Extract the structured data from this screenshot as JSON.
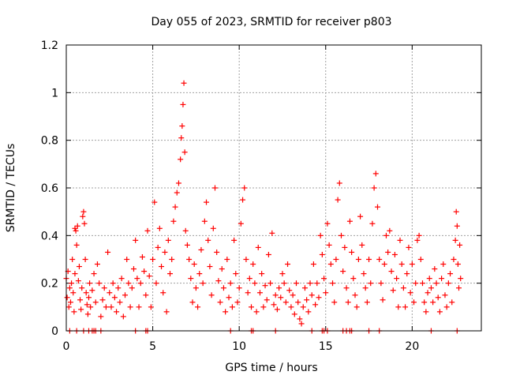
{
  "chart_data": {
    "type": "scatter",
    "title": "Day 055 of 2023, SRMTID for receiver p803",
    "xlabel": "GPS time / hours",
    "ylabel": "SRMTID / TECUs",
    "xlim": [
      0,
      24
    ],
    "ylim": [
      0,
      1.2
    ],
    "xticks": [
      {
        "value": 0,
        "label": "0"
      },
      {
        "value": 5,
        "label": "5"
      },
      {
        "value": 10,
        "label": "10"
      },
      {
        "value": 15,
        "label": "15"
      },
      {
        "value": 20,
        "label": "20"
      }
    ],
    "yticks": [
      {
        "value": 0,
        "label": "0"
      },
      {
        "value": 0.2,
        "label": "0.2"
      },
      {
        "value": 0.4,
        "label": "0.4"
      },
      {
        "value": 0.6,
        "label": "0.6"
      },
      {
        "value": 0.8,
        "label": "0.8"
      },
      {
        "value": 1.0,
        "label": "1"
      },
      {
        "value": 1.2,
        "label": "1.2"
      }
    ],
    "grid": true,
    "marker": "+",
    "color": "#ff0000",
    "series": [
      {
        "name": "SRMTID",
        "points": [
          [
            0.0,
            0.22
          ],
          [
            0.05,
            0.14
          ],
          [
            0.1,
            0.25
          ],
          [
            0.15,
            0.1
          ],
          [
            0.2,
            0.18
          ],
          [
            0.25,
            0.12
          ],
          [
            0.3,
            0.2
          ],
          [
            0.35,
            0.3
          ],
          [
            0.4,
            0.16
          ],
          [
            0.45,
            0.08
          ],
          [
            0.5,
            0.24
          ],
          [
            0.5,
            0.43
          ],
          [
            0.55,
            0.42
          ],
          [
            0.6,
            0.36
          ],
          [
            0.65,
            0.44
          ],
          [
            0.7,
            0.21
          ],
          [
            0.75,
            0.27
          ],
          [
            0.8,
            0.13
          ],
          [
            0.85,
            0.09
          ],
          [
            0.9,
            0.18
          ],
          [
            0.95,
            0.48
          ],
          [
            1.0,
            0.5
          ],
          [
            1.05,
            0.45
          ],
          [
            1.1,
            0.3
          ],
          [
            1.15,
            0.16
          ],
          [
            1.2,
            0.11
          ],
          [
            1.25,
            0.07
          ],
          [
            1.3,
            0.14
          ],
          [
            1.35,
            0.2
          ],
          [
            1.4,
            0.1
          ],
          [
            1.5,
            0.17
          ],
          [
            1.6,
            0.24
          ],
          [
            1.7,
            0.12
          ],
          [
            1.8,
            0.28
          ],
          [
            1.9,
            0.2
          ],
          [
            2.0,
            0.06
          ],
          [
            2.1,
            0.13
          ],
          [
            2.2,
            0.18
          ],
          [
            2.3,
            0.1
          ],
          [
            2.4,
            0.33
          ],
          [
            2.5,
            0.16
          ],
          [
            2.6,
            0.1
          ],
          [
            2.7,
            0.2
          ],
          [
            2.8,
            0.14
          ],
          [
            2.9,
            0.08
          ],
          [
            3.0,
            0.18
          ],
          [
            3.1,
            0.12
          ],
          [
            3.2,
            0.22
          ],
          [
            3.3,
            0.06
          ],
          [
            3.4,
            0.15
          ],
          [
            3.5,
            0.3
          ],
          [
            3.6,
            0.2
          ],
          [
            3.7,
            0.1
          ],
          [
            3.8,
            0.18
          ],
          [
            3.9,
            0.26
          ],
          [
            4.0,
            0.38
          ],
          [
            4.1,
            0.22
          ],
          [
            4.2,
            0.1
          ],
          [
            4.3,
            0.2
          ],
          [
            4.4,
            0.31
          ],
          [
            4.5,
            0.25
          ],
          [
            4.6,
            0.15
          ],
          [
            4.7,
            0.42
          ],
          [
            4.8,
            0.23
          ],
          [
            4.9,
            0.1
          ],
          [
            5.0,
            0.3
          ],
          [
            5.1,
            0.54
          ],
          [
            5.2,
            0.2
          ],
          [
            5.3,
            0.35
          ],
          [
            5.4,
            0.43
          ],
          [
            5.5,
            0.27
          ],
          [
            5.6,
            0.16
          ],
          [
            5.7,
            0.33
          ],
          [
            5.8,
            0.08
          ],
          [
            5.9,
            0.38
          ],
          [
            6.0,
            0.24
          ],
          [
            6.1,
            0.3
          ],
          [
            6.2,
            0.46
          ],
          [
            6.3,
            0.52
          ],
          [
            6.4,
            0.58
          ],
          [
            6.5,
            0.62
          ],
          [
            6.6,
            0.72
          ],
          [
            6.65,
            0.81
          ],
          [
            6.7,
            0.86
          ],
          [
            6.75,
            0.95
          ],
          [
            6.8,
            1.04
          ],
          [
            6.85,
            0.75
          ],
          [
            6.9,
            0.42
          ],
          [
            7.0,
            0.36
          ],
          [
            7.1,
            0.3
          ],
          [
            7.2,
            0.22
          ],
          [
            7.3,
            0.12
          ],
          [
            7.4,
            0.28
          ],
          [
            7.5,
            0.18
          ],
          [
            7.6,
            0.1
          ],
          [
            7.7,
            0.24
          ],
          [
            7.8,
            0.34
          ],
          [
            7.9,
            0.2
          ],
          [
            8.0,
            0.46
          ],
          [
            8.1,
            0.54
          ],
          [
            8.2,
            0.38
          ],
          [
            8.3,
            0.27
          ],
          [
            8.4,
            0.15
          ],
          [
            8.5,
            0.43
          ],
          [
            8.6,
            0.6
          ],
          [
            8.7,
            0.33
          ],
          [
            8.8,
            0.21
          ],
          [
            8.9,
            0.12
          ],
          [
            9.0,
            0.26
          ],
          [
            9.1,
            0.18
          ],
          [
            9.2,
            0.08
          ],
          [
            9.3,
            0.3
          ],
          [
            9.4,
            0.14
          ],
          [
            9.5,
            0.2
          ],
          [
            9.6,
            0.1
          ],
          [
            9.7,
            0.38
          ],
          [
            9.8,
            0.24
          ],
          [
            9.9,
            0.12
          ],
          [
            10.0,
            0.18
          ],
          [
            10.1,
            0.45
          ],
          [
            10.2,
            0.55
          ],
          [
            10.3,
            0.6
          ],
          [
            10.4,
            0.3
          ],
          [
            10.5,
            0.16
          ],
          [
            10.6,
            0.22
          ],
          [
            10.7,
            0.1
          ],
          [
            10.8,
            0.28
          ],
          [
            10.9,
            0.2
          ],
          [
            11.0,
            0.08
          ],
          [
            11.1,
            0.35
          ],
          [
            11.2,
            0.16
          ],
          [
            11.3,
            0.24
          ],
          [
            11.4,
            0.1
          ],
          [
            11.5,
            0.19
          ],
          [
            11.6,
            0.13
          ],
          [
            11.7,
            0.32
          ],
          [
            11.8,
            0.2
          ],
          [
            11.9,
            0.41
          ],
          [
            12.0,
            0.11
          ],
          [
            12.1,
            0.15
          ],
          [
            12.2,
            0.09
          ],
          [
            12.3,
            0.18
          ],
          [
            12.4,
            0.14
          ],
          [
            12.5,
            0.24
          ],
          [
            12.6,
            0.2
          ],
          [
            12.7,
            0.12
          ],
          [
            12.8,
            0.28
          ],
          [
            12.9,
            0.17
          ],
          [
            13.0,
            0.1
          ],
          [
            13.1,
            0.15
          ],
          [
            13.2,
            0.07
          ],
          [
            13.3,
            0.2
          ],
          [
            13.4,
            0.12
          ],
          [
            13.5,
            0.05
          ],
          [
            13.6,
            0.03
          ],
          [
            13.7,
            0.1
          ],
          [
            13.8,
            0.18
          ],
          [
            13.9,
            0.13
          ],
          [
            14.0,
            0.08
          ],
          [
            14.1,
            0.2
          ],
          [
            14.2,
            0.15
          ],
          [
            14.3,
            0.28
          ],
          [
            14.4,
            0.11
          ],
          [
            14.5,
            0.2
          ],
          [
            14.6,
            0.14
          ],
          [
            14.7,
            0.4
          ],
          [
            14.8,
            0.32
          ],
          [
            14.9,
            0.22
          ],
          [
            15.0,
            0.16
          ],
          [
            15.1,
            0.45
          ],
          [
            15.2,
            0.36
          ],
          [
            15.3,
            0.28
          ],
          [
            15.4,
            0.2
          ],
          [
            15.5,
            0.12
          ],
          [
            15.6,
            0.3
          ],
          [
            15.7,
            0.55
          ],
          [
            15.8,
            0.62
          ],
          [
            15.9,
            0.4
          ],
          [
            16.0,
            0.25
          ],
          [
            16.1,
            0.35
          ],
          [
            16.2,
            0.18
          ],
          [
            16.3,
            0.12
          ],
          [
            16.4,
            0.46
          ],
          [
            16.5,
            0.33
          ],
          [
            16.6,
            0.22
          ],
          [
            16.7,
            0.15
          ],
          [
            16.8,
            0.1
          ],
          [
            16.9,
            0.3
          ],
          [
            17.0,
            0.48
          ],
          [
            17.1,
            0.36
          ],
          [
            17.2,
            0.24
          ],
          [
            17.3,
            0.18
          ],
          [
            17.4,
            0.12
          ],
          [
            17.5,
            0.3
          ],
          [
            17.6,
            0.2
          ],
          [
            17.7,
            0.45
          ],
          [
            17.8,
            0.6
          ],
          [
            17.9,
            0.66
          ],
          [
            18.0,
            0.52
          ],
          [
            18.1,
            0.3
          ],
          [
            18.2,
            0.2
          ],
          [
            18.3,
            0.13
          ],
          [
            18.4,
            0.28
          ],
          [
            18.5,
            0.4
          ],
          [
            18.6,
            0.33
          ],
          [
            18.7,
            0.42
          ],
          [
            18.8,
            0.25
          ],
          [
            18.9,
            0.17
          ],
          [
            19.0,
            0.32
          ],
          [
            19.1,
            0.22
          ],
          [
            19.2,
            0.1
          ],
          [
            19.3,
            0.38
          ],
          [
            19.4,
            0.28
          ],
          [
            19.5,
            0.18
          ],
          [
            19.6,
            0.1
          ],
          [
            19.7,
            0.24
          ],
          [
            19.8,
            0.35
          ],
          [
            19.9,
            0.16
          ],
          [
            20.0,
            0.28
          ],
          [
            20.1,
            0.12
          ],
          [
            20.2,
            0.2
          ],
          [
            20.3,
            0.38
          ],
          [
            20.4,
            0.4
          ],
          [
            20.5,
            0.3
          ],
          [
            20.6,
            0.2
          ],
          [
            20.7,
            0.12
          ],
          [
            20.8,
            0.08
          ],
          [
            20.9,
            0.16
          ],
          [
            21.0,
            0.22
          ],
          [
            21.1,
            0.18
          ],
          [
            21.2,
            0.12
          ],
          [
            21.3,
            0.26
          ],
          [
            21.4,
            0.2
          ],
          [
            21.5,
            0.14
          ],
          [
            21.6,
            0.08
          ],
          [
            21.7,
            0.22
          ],
          [
            21.8,
            0.28
          ],
          [
            21.9,
            0.15
          ],
          [
            22.0,
            0.1
          ],
          [
            22.1,
            0.2
          ],
          [
            22.2,
            0.24
          ],
          [
            22.3,
            0.12
          ],
          [
            22.4,
            0.3
          ],
          [
            22.5,
            0.38
          ],
          [
            22.55,
            0.5
          ],
          [
            22.6,
            0.44
          ],
          [
            22.65,
            0.28
          ],
          [
            22.7,
            0.18
          ],
          [
            22.75,
            0.36
          ],
          [
            22.8,
            0.22
          ]
        ],
        "zero_points": [
          0.2,
          0.6,
          1.0,
          1.3,
          1.5,
          1.6,
          1.7,
          2.0,
          4.0,
          4.6,
          4.7,
          9.5,
          10.7,
          10.8,
          12.1,
          14.2,
          14.8,
          14.9,
          15.1,
          16.0,
          16.2,
          16.4,
          16.5,
          17.5,
          18.1,
          21.1,
          22.6
        ]
      }
    ]
  }
}
